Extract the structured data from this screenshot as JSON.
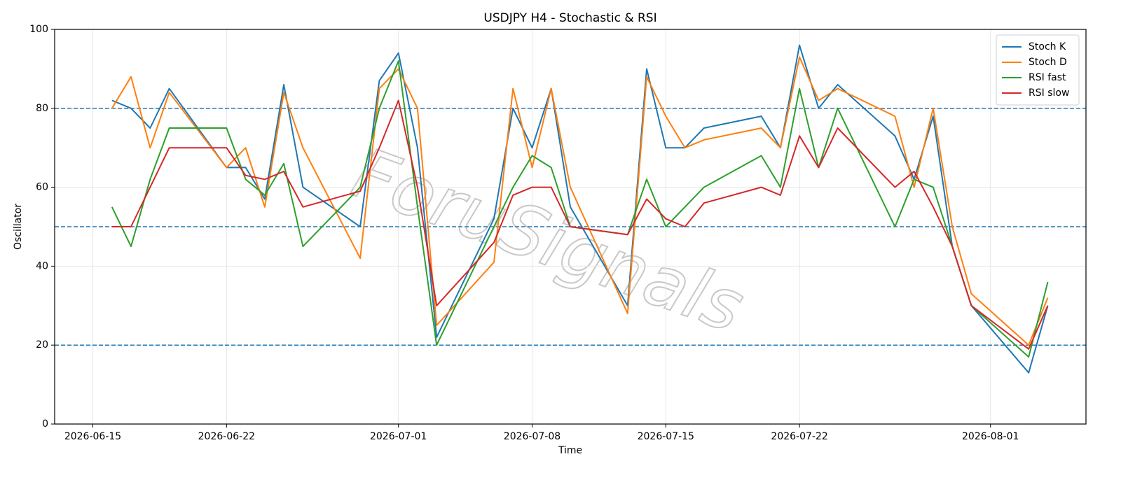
{
  "chart_data": {
    "type": "line",
    "title": "USDJPY H4 - Stochastic & RSI",
    "xlabel": "Time",
    "ylabel": "Oscillator",
    "watermark": "ForuSignals",
    "x": [
      "2026-06-16",
      "2026-06-17",
      "2026-06-18",
      "2026-06-19",
      "2026-06-22",
      "2026-06-23",
      "2026-06-24",
      "2026-06-25",
      "2026-06-26",
      "2026-06-29",
      "2026-06-30",
      "2026-07-01",
      "2026-07-02",
      "2026-07-03",
      "2026-07-06",
      "2026-07-07",
      "2026-07-08",
      "2026-07-09",
      "2026-07-10",
      "2026-07-13",
      "2026-07-14",
      "2026-07-15",
      "2026-07-16",
      "2026-07-17",
      "2026-07-20",
      "2026-07-21",
      "2026-07-22",
      "2026-07-23",
      "2026-07-24",
      "2026-07-27",
      "2026-07-28",
      "2026-07-29",
      "2026-07-30",
      "2026-07-31",
      "2026-08-03",
      "2026-08-04"
    ],
    "series": [
      {
        "name": "Stoch K",
        "color": "#1f77b4",
        "values": [
          82,
          80,
          75,
          85,
          65,
          65,
          57,
          86,
          60,
          50,
          87,
          94,
          70,
          22,
          52,
          80,
          70,
          85,
          55,
          30,
          90,
          70,
          70,
          75,
          78,
          70,
          96,
          80,
          86,
          73,
          62,
          78,
          45,
          30,
          13,
          30
        ]
      },
      {
        "name": "Stoch D",
        "color": "#ff7f0e",
        "values": [
          80,
          88,
          70,
          84,
          65,
          70,
          55,
          84,
          70,
          42,
          85,
          90,
          80,
          25,
          41,
          85,
          65,
          85,
          60,
          28,
          88,
          78,
          70,
          72,
          75,
          70,
          93,
          82,
          85,
          78,
          60,
          80,
          50,
          33,
          20,
          32
        ]
      },
      {
        "name": "RSI fast",
        "color": "#2ca02c",
        "values": [
          55,
          45,
          62,
          75,
          75,
          62,
          58,
          66,
          45,
          60,
          80,
          92,
          55,
          20,
          50,
          60,
          68,
          65,
          50,
          48,
          62,
          50,
          55,
          60,
          68,
          60,
          85,
          65,
          80,
          50,
          62,
          60,
          45,
          30,
          17,
          36
        ]
      },
      {
        "name": "RSI slow",
        "color": "#d62728",
        "values": [
          50,
          50,
          60,
          70,
          70,
          63,
          62,
          64,
          55,
          59,
          70,
          82,
          60,
          30,
          46,
          58,
          60,
          60,
          50,
          48,
          57,
          52,
          50,
          56,
          60,
          58,
          73,
          65,
          75,
          60,
          64,
          55,
          45,
          30,
          19,
          30
        ]
      }
    ],
    "xlim": [
      "2026-06-13",
      "2026-08-06"
    ],
    "xticks": [
      "2026-06-15",
      "2026-06-22",
      "2026-07-01",
      "2026-07-08",
      "2026-07-15",
      "2026-07-22",
      "2026-08-01"
    ],
    "ylim": [
      0,
      100
    ],
    "yticks": [
      0,
      20,
      40,
      60,
      80,
      100
    ],
    "hlines": [
      20,
      50,
      80
    ],
    "hline_color": "#1f77b4",
    "grid": true,
    "legend": "upper right"
  }
}
